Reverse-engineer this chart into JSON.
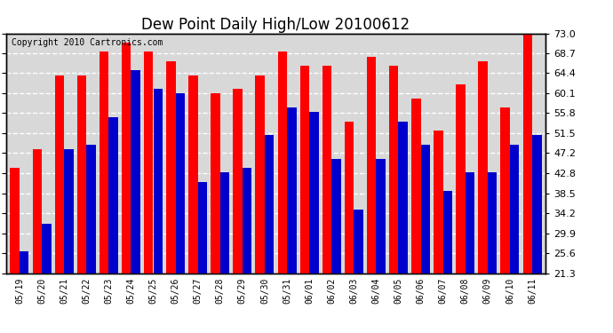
{
  "title": "Dew Point Daily High/Low 20100612",
  "copyright": "Copyright 2010 Cartronics.com",
  "dates": [
    "05/19",
    "05/20",
    "05/21",
    "05/22",
    "05/23",
    "05/24",
    "05/25",
    "05/26",
    "05/27",
    "05/28",
    "05/29",
    "05/30",
    "05/31",
    "06/01",
    "06/02",
    "06/03",
    "06/04",
    "06/05",
    "06/06",
    "06/07",
    "06/08",
    "06/09",
    "06/10",
    "06/11"
  ],
  "highs": [
    44,
    48,
    64,
    64,
    69,
    71,
    69,
    67,
    64,
    60,
    61,
    64,
    69,
    66,
    66,
    54,
    68,
    66,
    59,
    52,
    62,
    67,
    57,
    73
  ],
  "lows": [
    26,
    32,
    48,
    49,
    55,
    65,
    61,
    60,
    41,
    43,
    44,
    51,
    57,
    56,
    46,
    35,
    46,
    54,
    49,
    39,
    43,
    43,
    49,
    51
  ],
  "ylim_min": 21.3,
  "ylim_max": 73.0,
  "yticks": [
    21.3,
    25.6,
    29.9,
    34.2,
    38.5,
    42.8,
    47.2,
    51.5,
    55.8,
    60.1,
    64.4,
    68.7,
    73.0
  ],
  "bar_width": 0.42,
  "high_color": "#ff0000",
  "low_color": "#0000cc",
  "bg_color": "#ffffff",
  "plot_bg_color": "#d8d8d8",
  "grid_color": "#ffffff",
  "title_fontsize": 12,
  "copyright_fontsize": 7
}
